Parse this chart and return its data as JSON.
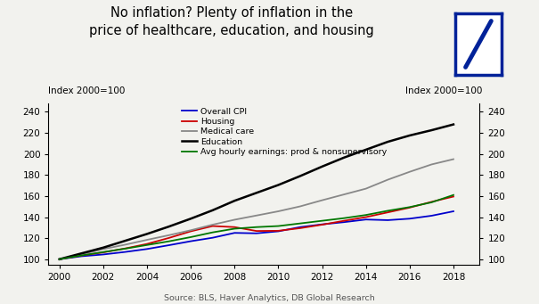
{
  "title_line1": "No inflation? Plenty of inflation in the",
  "title_line2": "price of healthcare, education, and housing",
  "ylabel_left": "Index 2000=100",
  "ylabel_right": "Index 2000=100",
  "source": "Source: BLS, Haver Analytics, DB Global Research",
  "years": [
    2000,
    2001,
    2002,
    2003,
    2004,
    2005,
    2006,
    2007,
    2008,
    2009,
    2010,
    2011,
    2012,
    2013,
    2014,
    2015,
    2016,
    2017,
    2018
  ],
  "overall_cpi": [
    100,
    102.8,
    104.5,
    106.9,
    109.7,
    113.3,
    117.1,
    120.4,
    125.0,
    124.6,
    126.5,
    130.5,
    133.1,
    135.2,
    137.7,
    137.1,
    138.5,
    141.3,
    145.5
  ],
  "housing": [
    100,
    103.5,
    106.5,
    110.2,
    114.5,
    120.2,
    126.5,
    131.5,
    130.5,
    126.8,
    127.0,
    129.5,
    132.8,
    136.5,
    140.0,
    144.5,
    149.0,
    154.5,
    159.5
  ],
  "medical_care": [
    100,
    104.7,
    109.6,
    113.8,
    118.4,
    122.8,
    127.5,
    132.8,
    137.5,
    141.5,
    145.5,
    150.2,
    156.0,
    161.5,
    167.0,
    175.5,
    183.0,
    190.0,
    195.0
  ],
  "education": [
    100,
    105.5,
    111.0,
    117.5,
    124.0,
    131.0,
    138.5,
    146.5,
    155.5,
    163.0,
    170.5,
    179.0,
    188.0,
    196.5,
    204.0,
    211.5,
    217.5,
    222.5,
    228.0
  ],
  "avg_hourly_earnings": [
    100,
    103.5,
    106.8,
    110.0,
    113.5,
    117.0,
    121.0,
    125.5,
    129.0,
    130.5,
    131.5,
    134.0,
    136.5,
    139.0,
    142.0,
    146.0,
    149.5,
    154.0,
    161.0
  ],
  "colors": {
    "overall_cpi": "#0000cc",
    "housing": "#cc0000",
    "medical_care": "#888888",
    "education": "#000000",
    "avg_hourly_earnings": "#007700"
  },
  "ylim": [
    95,
    248
  ],
  "yticks": [
    100,
    120,
    140,
    160,
    180,
    200,
    220,
    240
  ],
  "xlim": [
    1999.5,
    2019.2
  ],
  "xticks": [
    2000,
    2002,
    2004,
    2006,
    2008,
    2010,
    2012,
    2014,
    2016,
    2018
  ],
  "bg_color": "#f2f2ee",
  "logo_color": "#002299"
}
